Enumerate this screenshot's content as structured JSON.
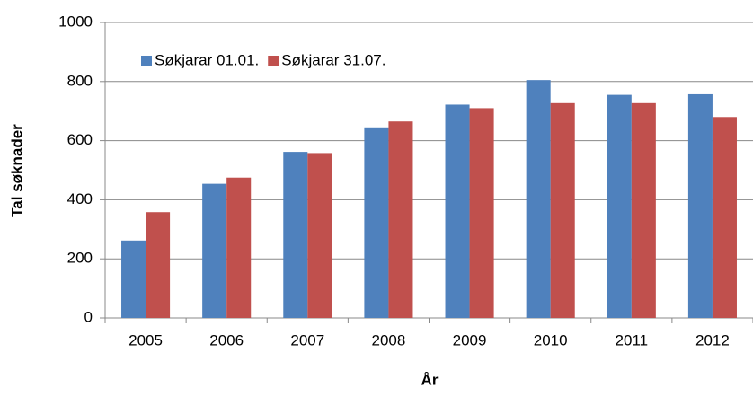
{
  "chart_data": {
    "type": "bar",
    "x_label": "År",
    "y_label": "Tal søknader",
    "categories": [
      "2005",
      "2006",
      "2007",
      "2008",
      "2009",
      "2010",
      "2011",
      "2012"
    ],
    "series": [
      {
        "name": "Søkjarar 01.01.",
        "color": "#4f81bd",
        "values": [
          262,
          454,
          562,
          645,
          722,
          805,
          755,
          757
        ]
      },
      {
        "name": "Søkjarar 31.07.",
        "color": "#c0504d",
        "values": [
          358,
          475,
          558,
          665,
          710,
          727,
          727,
          680
        ]
      }
    ],
    "ylim": [
      0,
      1000
    ],
    "yticks": [
      0,
      200,
      400,
      600,
      800,
      1000
    ],
    "grid": true,
    "legend": "top-left"
  }
}
